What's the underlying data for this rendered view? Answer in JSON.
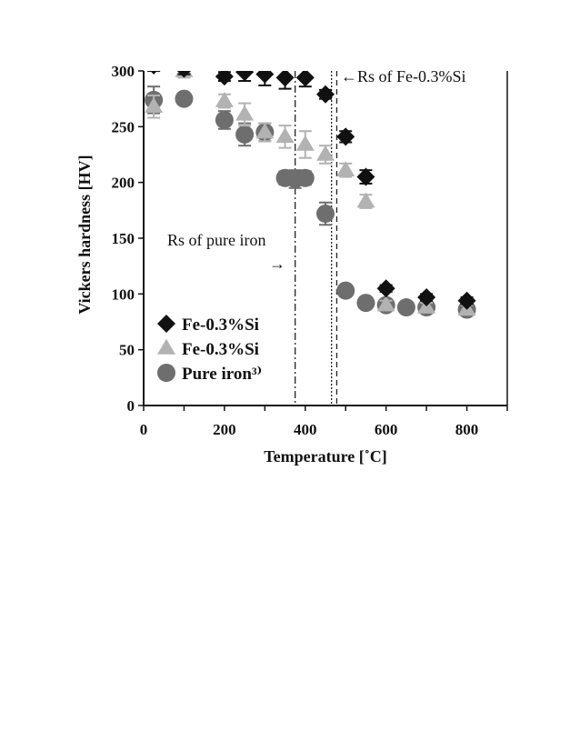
{
  "chart_data": {
    "type": "scatter",
    "xlabel": "Temperature  [˚C]",
    "ylabel": "Vickers hardness  [HV]",
    "xlim": [
      0,
      900
    ],
    "ylim": [
      0,
      300
    ],
    "xticks": [
      0,
      200,
      400,
      600,
      800
    ],
    "yticks": [
      0,
      50,
      100,
      150,
      200,
      250,
      300
    ],
    "grid": false,
    "legend_position": "bottom-left",
    "series": [
      {
        "name": "Fe-0.3%Si",
        "marker": "diamond",
        "color": "#111111",
        "x": [
          25,
          100,
          200,
          250,
          300,
          350,
          400,
          450,
          500,
          550,
          600,
          700,
          800
        ],
        "y": [
          305,
          302,
          295,
          299,
          297,
          294,
          294,
          279,
          241,
          205,
          105,
          97,
          94
        ],
        "err": [
          5,
          5,
          4,
          8,
          10,
          10,
          8,
          4,
          5,
          6,
          3,
          3,
          3
        ]
      },
      {
        "name": "Fe-0.3%Si",
        "marker": "triangle",
        "color": "#b2b2b2",
        "x": [
          25,
          100,
          200,
          250,
          300,
          350,
          400,
          450,
          500,
          550,
          600,
          700,
          800
        ],
        "y": [
          268,
          300,
          273,
          261,
          245,
          241,
          234,
          225,
          211,
          183,
          90,
          88,
          86
        ],
        "err": [
          10,
          6,
          6,
          10,
          8,
          10,
          12,
          8,
          6,
          6,
          4,
          4,
          4
        ]
      },
      {
        "name": "Pure iron³⁾",
        "marker": "circle",
        "color": "#6e6e6e",
        "x": [
          25,
          100,
          200,
          250,
          300,
          350,
          375,
          400,
          450,
          500,
          550,
          600,
          650,
          700,
          800
        ],
        "y": [
          274,
          275,
          256,
          243,
          245,
          204,
          203,
          204,
          172,
          103,
          92,
          90,
          88,
          88,
          86
        ],
        "err": [
          12,
          5,
          8,
          10,
          8,
          6,
          8,
          6,
          10,
          4,
          3,
          3,
          3,
          3,
          3
        ]
      }
    ],
    "reference_lines": [
      {
        "x": 375,
        "style": "dash-dot",
        "label": "Rs of pure iron"
      },
      {
        "x": 465,
        "style": "dotted",
        "label": ""
      },
      {
        "x": 478,
        "style": "dashed",
        "label": "Rs of Fe-0.3%Si"
      }
    ],
    "annotations": {
      "rs_fe_si": "←Rs of Fe-0.3%Si",
      "rs_pure_iron": "Rs of pure iron",
      "rs_pure_iron_arrow": "→"
    }
  }
}
